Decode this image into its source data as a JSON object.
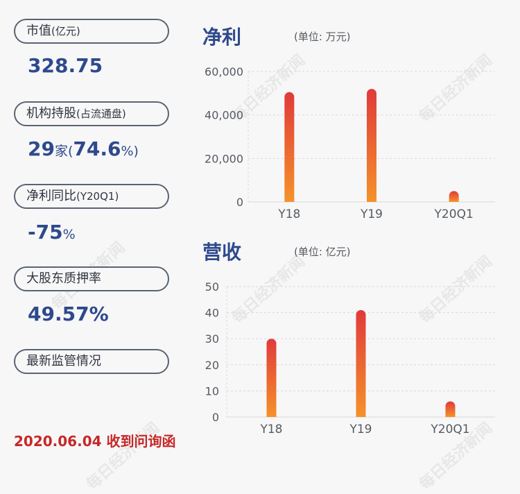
{
  "watermark": "每日经济新闻",
  "left_panel": {
    "market_cap": {
      "label": "市值",
      "label_unit": "(亿元)",
      "value": "328.75"
    },
    "institutional": {
      "label": "机构持股",
      "label_unit": "(占流通盘)",
      "count": "29",
      "count_unit": "家",
      "paren_open": "(",
      "percent": "74.6",
      "percent_unit": "%)"
    },
    "profit_yoy": {
      "label": "净利同比",
      "label_unit": "(Y20Q1)",
      "value": "-75",
      "unit": "%"
    },
    "pledge": {
      "label": "大股东质押率",
      "value": "49.57%"
    },
    "latest": {
      "label": "最新监管情况"
    }
  },
  "footer": "2020.06.04 收到问询函",
  "chart_data": [
    {
      "type": "bar",
      "title": "净利",
      "unit": "(单位: 万元)",
      "categories": [
        "Y18",
        "Y19",
        "Y20Q1"
      ],
      "values": [
        50500,
        52000,
        5000
      ],
      "ylim": [
        0,
        60000
      ],
      "yticks": [
        "0",
        "20,000",
        "40,000",
        "60,000"
      ],
      "ytick_values": [
        0,
        20000,
        40000,
        60000
      ],
      "grid": true
    },
    {
      "type": "bar",
      "title": "营收",
      "unit": "(单位: 亿元)",
      "categories": [
        "Y18",
        "Y19",
        "Y20Q1"
      ],
      "values": [
        30,
        41,
        6
      ],
      "ylim": [
        0,
        50
      ],
      "yticks": [
        "0",
        "10",
        "20",
        "30",
        "40",
        "50"
      ],
      "ytick_values": [
        0,
        10,
        20,
        30,
        40,
        50
      ],
      "grid": true
    }
  ],
  "colors": {
    "bar_top": "#e03a3a",
    "bar_bottom": "#f5922a",
    "grid": "#d9d9d9",
    "axis_text": "#555a62"
  }
}
